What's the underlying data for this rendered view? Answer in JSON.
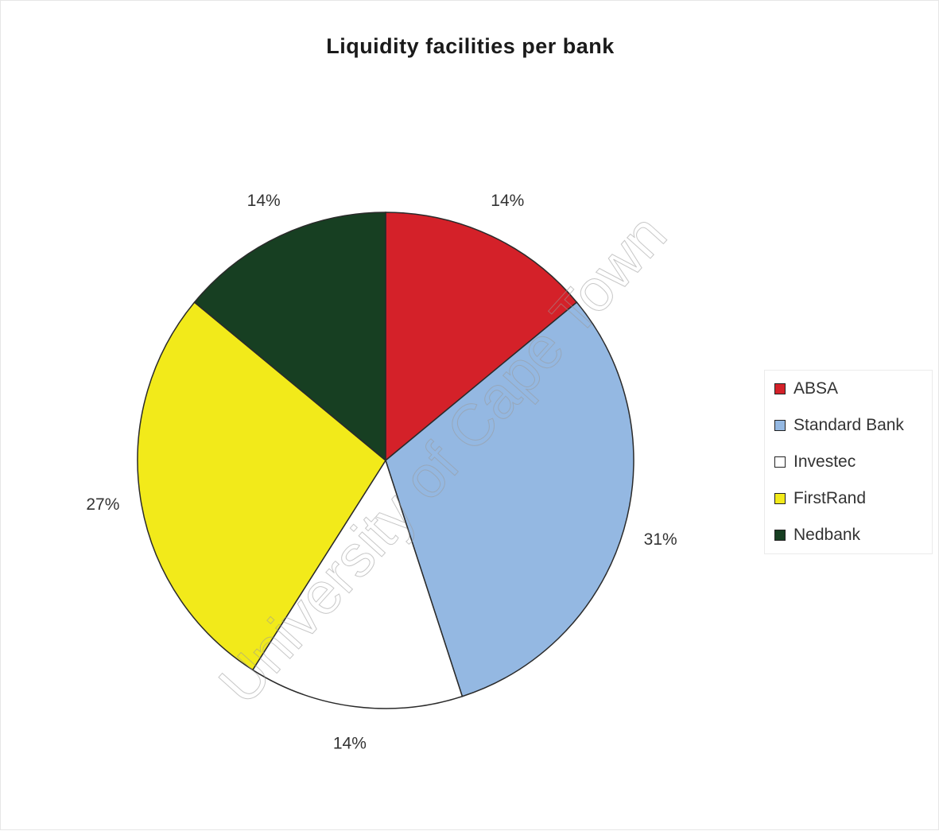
{
  "chart_data": {
    "type": "pie",
    "title": "Liquidity facilities per bank",
    "categories": [
      "ABSA",
      "Standard Bank",
      "Investec",
      "FirstRand",
      "Nedbank"
    ],
    "values": [
      14,
      31,
      14,
      27,
      14
    ],
    "labels": [
      "14%",
      "31%",
      "14%",
      "27%",
      "14%"
    ],
    "colors": [
      "#d42129",
      "#94b8e2",
      "#ffffff",
      "#f2ea1a",
      "#173f22"
    ],
    "legend_position": "right",
    "watermark": "University of Cape Town"
  }
}
